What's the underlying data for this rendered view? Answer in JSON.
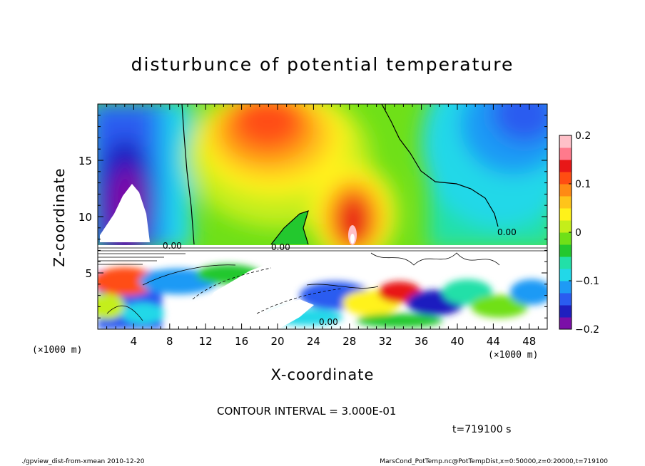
{
  "chart_data": {
    "type": "heatmap",
    "title": "disturbunce of potential temperature",
    "xlabel": "X-coordinate",
    "ylabel": "Z-coordinate",
    "x_unit": "(×1000 m)",
    "x_unit_right": "(×1000 m)",
    "x_ticks": [
      4,
      8,
      12,
      16,
      20,
      24,
      28,
      32,
      36,
      40,
      44,
      48
    ],
    "y_ticks": [
      5,
      10,
      15
    ],
    "xlim": [
      0,
      50
    ],
    "ylim": [
      0,
      20
    ],
    "colorbar": {
      "ticks": [
        "0.2",
        "0.1",
        "0",
        "−0.1",
        "−0.2"
      ],
      "tick_values": [
        0.2,
        0.1,
        0,
        -0.1,
        -0.2
      ],
      "range": [
        -0.2,
        0.2
      ],
      "colors": [
        "#7b0fa8",
        "#1f1fbf",
        "#2a5cf0",
        "#1e9af5",
        "#22d8e8",
        "#22e0a8",
        "#23c82e",
        "#6fe018",
        "#c4ee1a",
        "#fff21a",
        "#ffc41a",
        "#ff8a14",
        "#ff4d12",
        "#e81818",
        "#ff7a8c",
        "#ffc0c8"
      ]
    },
    "contour_interval": "CONTOUR INTERVAL = 3.000E-01",
    "contour_labels": [
      "0.00",
      "0.00",
      "0.00",
      "0.00"
    ],
    "timestamp": "t=719100 s",
    "grid": false
  },
  "footer": {
    "left": "./gpview_dist-from-xmean  2010-12-20",
    "right": "MarsCond_PotTemp.nc@PotTempDist,x=0:50000,z=0:20000,t=719100"
  }
}
